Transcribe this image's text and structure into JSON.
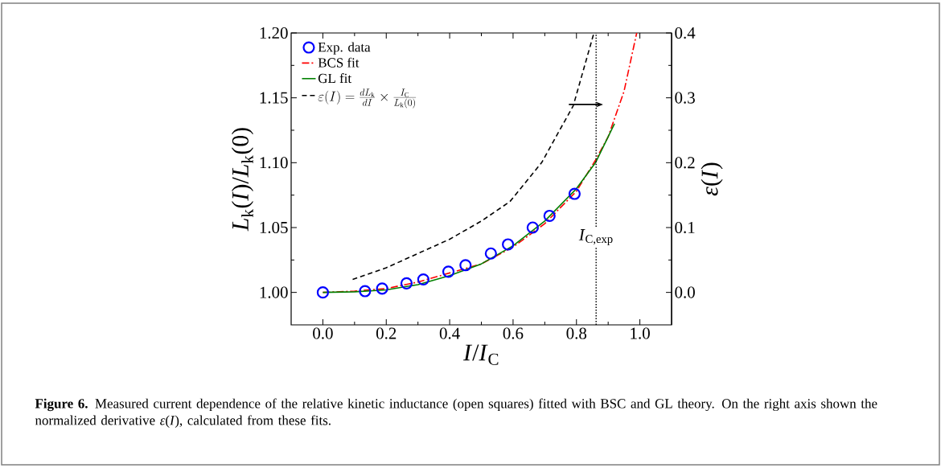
{
  "chart_data": {
    "type": "line",
    "xlabel": "*I*/*I*$_{C}$",
    "ylabel": "*L*$_{k}$(*I*)/*L*$_{k}$(0)",
    "y2label": "*ε*(*I*)",
    "xlim": [
      -0.1,
      1.1
    ],
    "xticks": [
      {
        "value": 0,
        "label": "0.0"
      },
      0.2,
      0.4,
      0.6,
      0.8,
      {
        "value": 1,
        "label": "1.0"
      }
    ],
    "ylim": [
      0.975,
      1.2
    ],
    "yticks": [
      {
        "value": 1,
        "label": "1.00"
      },
      1.05,
      {
        "value": 1.1,
        "label": "1.10"
      },
      1.15,
      {
        "value": 1.2,
        "label": "1.20"
      }
    ],
    "y2lim": [
      -0.05,
      0.4
    ],
    "y2ticks": [
      {
        "value": 0,
        "label": "0.0"
      },
      0.1,
      0.2,
      0.3,
      0.4
    ],
    "legend": "top left",
    "grid": false,
    "series": [
      {
        "name": "Exp. data",
        "type": "scatter",
        "marker": "circle",
        "color": "#0000ff",
        "x": [
          0.0,
          0.133,
          0.187,
          0.264,
          0.317,
          0.396,
          0.45,
          0.53,
          0.584,
          0.662,
          0.715,
          0.794
        ],
        "values": [
          1.0,
          1.001,
          1.003,
          1.007,
          1.01,
          1.016,
          1.021,
          1.03,
          1.037,
          1.05,
          1.059,
          1.076
        ]
      },
      {
        "name": "BCS fit",
        "line_style": "dashdot",
        "color": "#ff0000",
        "x": [
          0.0,
          0.1,
          0.2,
          0.3,
          0.4,
          0.5,
          0.6,
          0.7,
          0.8,
          0.86,
          0.9,
          0.95,
          0.99
        ],
        "values": [
          1.0,
          1.001,
          1.003,
          1.008,
          1.015,
          1.022,
          1.035,
          1.053,
          1.078,
          1.102,
          1.12,
          1.155,
          1.2
        ]
      },
      {
        "name": "GL fit",
        "line_style": "solid",
        "color": "#008000",
        "x": [
          0.0,
          0.1,
          0.2,
          0.3,
          0.4,
          0.5,
          0.6,
          0.7,
          0.8,
          0.86,
          0.92
        ],
        "values": [
          1.0,
          1.0005,
          1.002,
          1.006,
          1.013,
          1.022,
          1.036,
          1.055,
          1.08,
          1.1,
          1.13
        ]
      },
      {
        "name": "\\varepsilon(I)=\\frac{dL_\\mathrm{k}}{dI}\\times\\frac{I_\\mathrm{C}}{L_\\mathrm{k}(0)}",
        "line_style": "dashed",
        "axis": "y2",
        "color": "#000000",
        "x": [
          0.094,
          0.2,
          0.3,
          0.4,
          0.5,
          0.59,
          0.69,
          0.79,
          0.855
        ],
        "values": [
          0.02,
          0.038,
          0.06,
          0.082,
          0.11,
          0.14,
          0.2,
          0.288,
          0.4
        ]
      }
    ],
    "ref_lines": [
      {
        "axis": "x",
        "value": 0.862,
        "label": "*I*$_{C,exp}$",
        "line_style": "dotted",
        "color": "#000000"
      }
    ],
    "annotations": [
      "**Figure 6.** Measured current dependence of the relative kinetic inductance (open squares) fitted with BSC and GL theory. On the right axis shown the normalized derivative *ε*(*I*), calculated from these fits."
    ]
  }
}
